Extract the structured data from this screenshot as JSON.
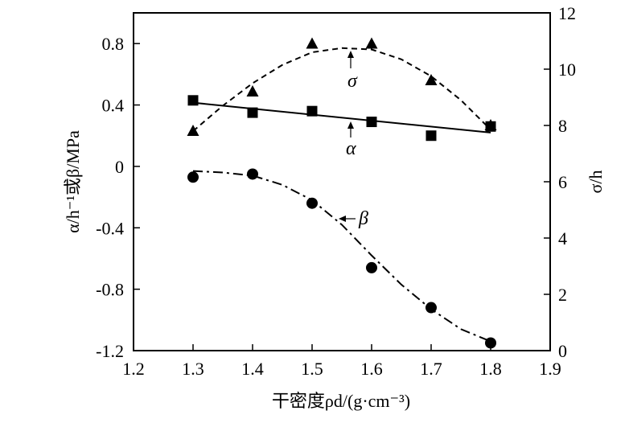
{
  "chart_data": {
    "type": "scatter",
    "xlabel": "干密度ρd/(g·cm⁻³)",
    "ylabel_left": "α/h⁻¹或β/MPa",
    "ylabel_right": "σ/h",
    "x_ticks": [
      "1.2",
      "1.3",
      "1.4",
      "1.5",
      "1.6",
      "1.7",
      "1.8",
      "1.9"
    ],
    "y_left_ticks": [
      "-1.2",
      "-0.8",
      "-0.4",
      "0",
      "0.4",
      "0.8"
    ],
    "y_right_ticks": [
      "0",
      "2",
      "4",
      "6",
      "8",
      "10",
      "12"
    ],
    "xlim": [
      1.2,
      1.9
    ],
    "ylim_left": [
      -1.2,
      1.0
    ],
    "ylim_right": [
      0,
      12
    ],
    "grid": false,
    "series": [
      {
        "name": "α",
        "axis": "left",
        "marker": "square",
        "line": "solid",
        "x": [
          1.3,
          1.4,
          1.5,
          1.6,
          1.7,
          1.8
        ],
        "values": [
          0.43,
          0.35,
          0.36,
          0.29,
          0.2,
          0.26
        ],
        "fit": [
          [
            1.3,
            0.415
          ],
          [
            1.8,
            0.22
          ]
        ]
      },
      {
        "name": "σ",
        "axis": "right",
        "marker": "triangle",
        "line": "dashed",
        "x": [
          1.3,
          1.4,
          1.5,
          1.6,
          1.7,
          1.8
        ],
        "values": [
          7.8,
          9.2,
          10.9,
          10.9,
          9.6,
          8.0
        ],
        "fit": [
          [
            1.3,
            7.8
          ],
          [
            1.35,
            8.7
          ],
          [
            1.4,
            9.5
          ],
          [
            1.45,
            10.15
          ],
          [
            1.5,
            10.6
          ],
          [
            1.55,
            10.75
          ],
          [
            1.6,
            10.7
          ],
          [
            1.65,
            10.35
          ],
          [
            1.7,
            9.75
          ],
          [
            1.75,
            8.9
          ],
          [
            1.8,
            7.85
          ]
        ]
      },
      {
        "name": "β",
        "axis": "left",
        "marker": "circle",
        "line": "dashdot",
        "x": [
          1.3,
          1.4,
          1.5,
          1.6,
          1.7,
          1.8
        ],
        "values": [
          -0.07,
          -0.05,
          -0.24,
          -0.66,
          -0.92,
          -1.15
        ],
        "fit": [
          [
            1.3,
            -0.03
          ],
          [
            1.35,
            -0.04
          ],
          [
            1.4,
            -0.06
          ],
          [
            1.45,
            -0.12
          ],
          [
            1.5,
            -0.22
          ],
          [
            1.55,
            -0.38
          ],
          [
            1.6,
            -0.58
          ],
          [
            1.65,
            -0.77
          ],
          [
            1.7,
            -0.93
          ],
          [
            1.75,
            -1.06
          ],
          [
            1.8,
            -1.14
          ]
        ]
      }
    ]
  }
}
